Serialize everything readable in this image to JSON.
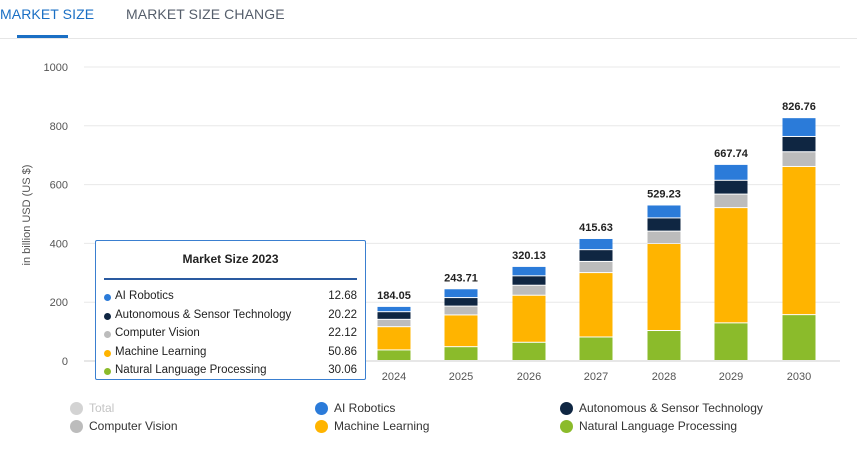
{
  "tabs": {
    "market_size": "MARKET SIZE",
    "market_size_change": "MARKET SIZE CHANGE"
  },
  "colors": {
    "ai_robotics": "#2b7bd9",
    "autonomous": "#0f2642",
    "computer_vision": "#bcbcbc",
    "machine_learning": "#ffb400",
    "nlp": "#8bbb2b",
    "total_muted": "#d3d3d3",
    "accent": "#1a6fc4"
  },
  "chart_data": {
    "type": "bar",
    "stacked": true,
    "ylabel": "in billion USD (US $)",
    "ylim": [
      0,
      1000
    ],
    "yticks": [
      0,
      200,
      400,
      600,
      800,
      1000
    ],
    "categories": [
      "2024",
      "2025",
      "2026",
      "2027",
      "2028",
      "2029",
      "2030"
    ],
    "totals": [
      "184.05",
      "243.71",
      "320.13",
      "415.63",
      "529.23",
      "667.74",
      "826.76"
    ],
    "series": [
      {
        "name": "Natural Language Processing",
        "key": "nlp",
        "values": [
          36,
          47,
          62,
          80,
          102,
          128,
          156
        ]
      },
      {
        "name": "Machine Learning",
        "key": "machine_learning",
        "values": [
          79,
          108,
          160,
          219,
          296,
          392,
          504
        ]
      },
      {
        "name": "Computer Vision",
        "key": "computer_vision",
        "values": [
          25,
          30,
          34,
          38,
          42,
          46,
          50
        ]
      },
      {
        "name": "Autonomous & Sensor Technology",
        "key": "autonomous",
        "values": [
          26,
          29,
          32,
          40,
          45,
          47,
          52
        ]
      },
      {
        "name": "AI Robotics",
        "key": "ai_robotics",
        "values": [
          18,
          30,
          32,
          38,
          44,
          54,
          64
        ]
      }
    ]
  },
  "tooltip": {
    "title": "Market Size 2023",
    "rows": [
      {
        "label": "AI Robotics",
        "value": "12.68",
        "key": "ai_robotics"
      },
      {
        "label": "Autonomous & Sensor Technology",
        "value": "20.22",
        "key": "autonomous"
      },
      {
        "label": "Computer Vision",
        "value": "22.12",
        "key": "computer_vision"
      },
      {
        "label": "Machine Learning",
        "value": "50.86",
        "key": "machine_learning"
      },
      {
        "label": "Natural Language Processing",
        "value": "30.06",
        "key": "nlp"
      }
    ]
  },
  "legend": {
    "items": [
      {
        "label": "Total",
        "key": "total_muted",
        "muted": true
      },
      {
        "label": "AI Robotics",
        "key": "ai_robotics"
      },
      {
        "label": "Autonomous & Sensor Technology",
        "key": "autonomous"
      },
      {
        "label": "Computer Vision",
        "key": "computer_vision"
      },
      {
        "label": "Machine Learning",
        "key": "machine_learning"
      },
      {
        "label": "Natural Language Processing",
        "key": "nlp"
      }
    ]
  }
}
